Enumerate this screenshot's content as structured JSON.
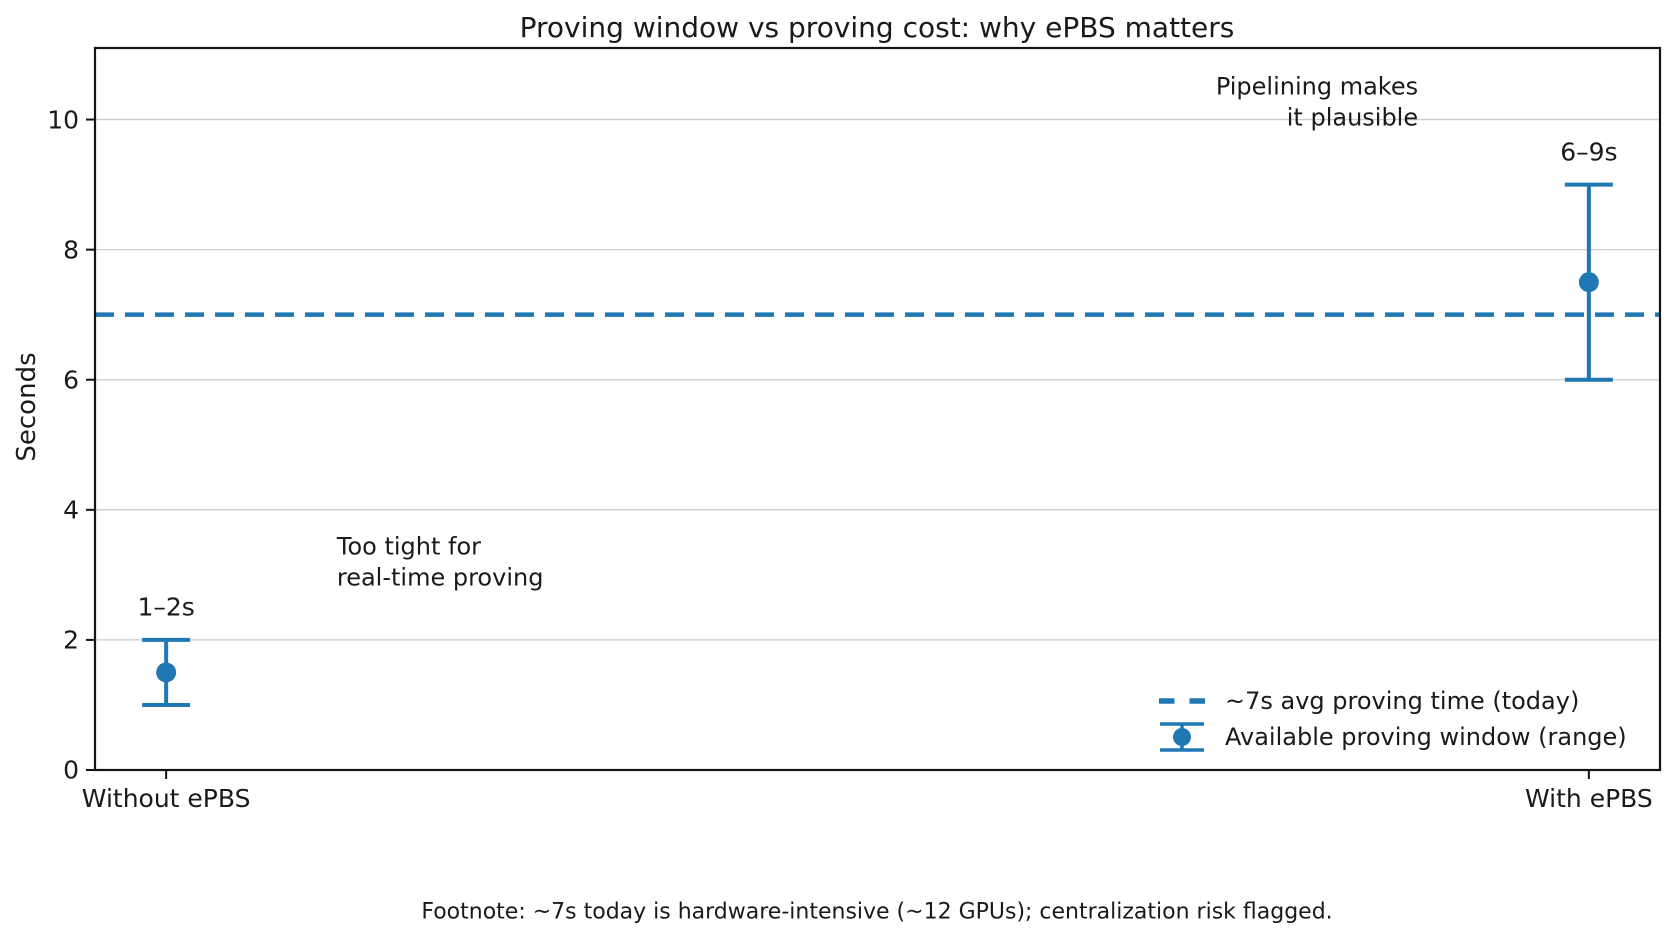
{
  "chart_data": {
    "type": "errorbar",
    "title": "Proving window vs proving cost: why ePBS matters",
    "ylabel": "Seconds",
    "xlabel": "",
    "categories": [
      "Without ePBS",
      "With ePBS"
    ],
    "x": [
      0,
      1
    ],
    "series": [
      {
        "name": "Available proving window (range)",
        "centers": [
          1.5,
          7.5
        ],
        "lows": [
          1,
          6
        ],
        "highs": [
          2,
          9
        ],
        "point_labels": [
          "1–2s",
          "6–9s"
        ]
      }
    ],
    "hline": {
      "y": 7,
      "style": "dashed",
      "label": "~7s avg proving time (today)"
    },
    "yticks": [
      0,
      2,
      4,
      6,
      8,
      10
    ],
    "ylim": [
      0,
      11.1
    ],
    "xlim": [
      -0.05,
      1.05
    ],
    "grid": "horizontal-only",
    "point_label_offset": 0.5,
    "annotations": [
      {
        "text": "Too tight for\nreal-time proving",
        "x": 0.12,
        "y": 3.2,
        "align": "left"
      },
      {
        "text": "Pipelining makes\nit plausible",
        "x": 0.88,
        "y": 10.27,
        "align": "right"
      }
    ],
    "legend": {
      "position": "lower-right",
      "frame": false,
      "entries": [
        {
          "symbol": "dashed-line",
          "label": "~7s avg proving time (today)"
        },
        {
          "symbol": "errorbar",
          "label": "Available proving window (range)"
        }
      ]
    },
    "footnote": "Footnote: ~7s today is hardware-intensive (~12 GPUs); centralization risk flagged.",
    "colors": {
      "series": "#1f77b4",
      "grid": "#cccccc",
      "spine": "#141414",
      "text": "#1a1a1a"
    }
  }
}
